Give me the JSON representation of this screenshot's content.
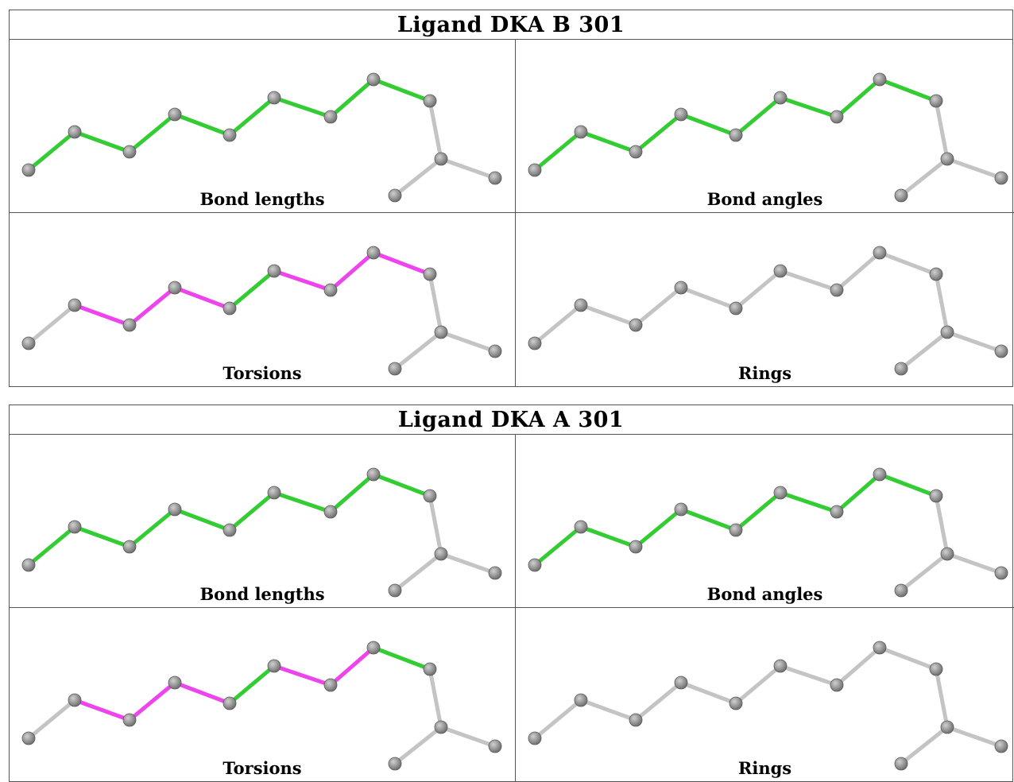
{
  "colors": {
    "atom": "#707070",
    "bond_default": "#c4c4c4",
    "bond_ok": "#33cc33",
    "bond_outlier": "#ee44ee"
  },
  "ligands": [
    {
      "title": "Ligand DKA B 301",
      "panels": [
        {
          "label": "Bond lengths",
          "bond_colors": [
            "ok",
            "ok",
            "ok",
            "ok",
            "ok",
            "ok",
            "ok",
            "ok",
            "default",
            "default",
            "default"
          ]
        },
        {
          "label": "Bond angles",
          "bond_colors": [
            "ok",
            "ok",
            "ok",
            "ok",
            "ok",
            "ok",
            "ok",
            "ok",
            "default",
            "default",
            "default"
          ]
        },
        {
          "label": "Torsions",
          "bond_colors": [
            "default",
            "outlier",
            "outlier",
            "outlier",
            "ok",
            "outlier",
            "outlier",
            "outlier",
            "default",
            "default",
            "default"
          ]
        },
        {
          "label": "Rings",
          "bond_colors": [
            "default",
            "default",
            "default",
            "default",
            "default",
            "default",
            "default",
            "default",
            "default",
            "default",
            "default"
          ]
        }
      ]
    },
    {
      "title": "Ligand DKA A 301",
      "panels": [
        {
          "label": "Bond lengths",
          "bond_colors": [
            "ok",
            "ok",
            "ok",
            "ok",
            "ok",
            "ok",
            "ok",
            "ok",
            "default",
            "default",
            "default"
          ]
        },
        {
          "label": "Bond angles",
          "bond_colors": [
            "ok",
            "ok",
            "ok",
            "ok",
            "ok",
            "ok",
            "ok",
            "ok",
            "default",
            "default",
            "default"
          ]
        },
        {
          "label": "Torsions",
          "bond_colors": [
            "default",
            "outlier",
            "outlier",
            "outlier",
            "ok",
            "outlier",
            "outlier",
            "ok",
            "default",
            "default",
            "default"
          ]
        },
        {
          "label": "Rings",
          "bond_colors": [
            "default",
            "default",
            "default",
            "default",
            "default",
            "default",
            "default",
            "default",
            "default",
            "default",
            "default"
          ]
        }
      ]
    }
  ]
}
